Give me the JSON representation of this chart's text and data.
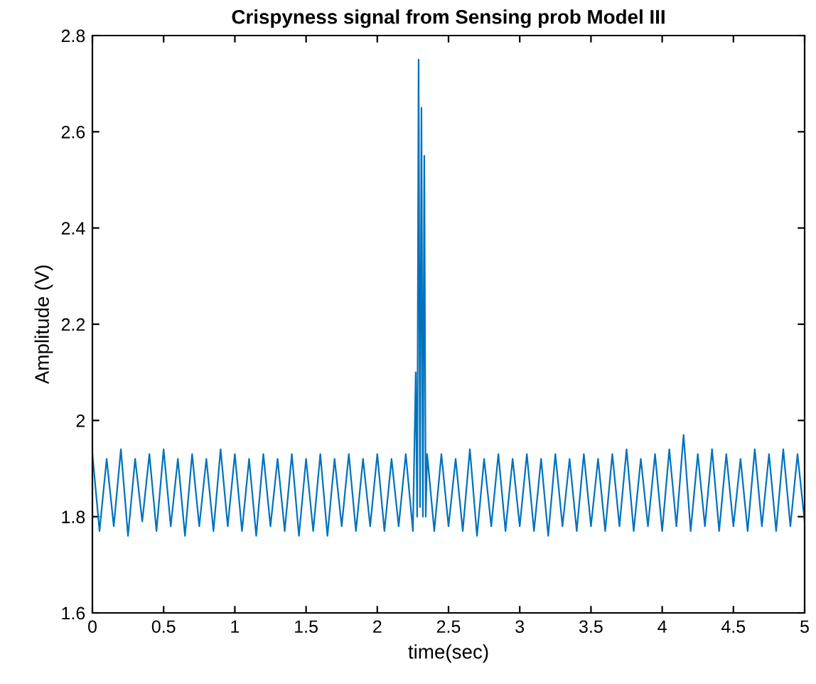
{
  "chart_data": {
    "type": "line",
    "title": "Crispyness signal from Sensing prob Model III",
    "xlabel": "time(sec)",
    "ylabel": "Amplitude (V)",
    "xlim": [
      0,
      5
    ],
    "xticks": [
      0,
      0.5,
      1,
      1.5,
      2,
      2.5,
      3,
      3.5,
      4,
      4.5,
      5
    ],
    "ylim": [
      1.6,
      2.8
    ],
    "yticks": [
      1.6,
      1.8,
      2,
      2.2,
      2.4,
      2.6,
      2.8
    ],
    "grid": false,
    "legend": false,
    "series": [
      {
        "color": "#0072bd",
        "x": [
          0,
          0.05,
          0.1,
          0.15,
          0.2,
          0.25,
          0.3,
          0.35,
          0.4,
          0.45,
          0.5,
          0.55,
          0.6,
          0.65,
          0.7,
          0.75,
          0.8,
          0.85,
          0.9,
          0.95,
          1,
          1.05,
          1.1,
          1.15,
          1.2,
          1.25,
          1.3,
          1.35,
          1.4,
          1.45,
          1.5,
          1.55,
          1.6,
          1.65,
          1.7,
          1.75,
          1.8,
          1.85,
          1.9,
          1.95,
          2,
          2.05,
          2.1,
          2.15,
          2.2,
          2.25,
          2.27,
          2.28,
          2.29,
          2.3,
          2.31,
          2.32,
          2.33,
          2.34,
          2.35,
          2.4,
          2.45,
          2.5,
          2.55,
          2.6,
          2.65,
          2.7,
          2.75,
          2.8,
          2.85,
          2.9,
          2.95,
          3,
          3.05,
          3.1,
          3.15,
          3.2,
          3.25,
          3.3,
          3.35,
          3.4,
          3.45,
          3.5,
          3.55,
          3.6,
          3.65,
          3.7,
          3.75,
          3.8,
          3.85,
          3.9,
          3.95,
          4,
          4.05,
          4.1,
          4.15,
          4.2,
          4.25,
          4.3,
          4.35,
          4.4,
          4.45,
          4.5,
          4.55,
          4.6,
          4.65,
          4.7,
          4.75,
          4.8,
          4.85,
          4.9,
          4.95,
          5
        ],
        "values": [
          1.93,
          1.77,
          1.92,
          1.78,
          1.94,
          1.76,
          1.92,
          1.79,
          1.93,
          1.77,
          1.94,
          1.78,
          1.92,
          1.76,
          1.93,
          1.78,
          1.92,
          1.77,
          1.94,
          1.78,
          1.93,
          1.77,
          1.92,
          1.76,
          1.93,
          1.78,
          1.92,
          1.77,
          1.93,
          1.76,
          1.92,
          1.77,
          1.93,
          1.76,
          1.92,
          1.78,
          1.93,
          1.77,
          1.92,
          1.78,
          1.93,
          1.77,
          1.92,
          1.78,
          1.93,
          1.77,
          2.1,
          1.8,
          2.75,
          1.82,
          2.65,
          1.8,
          2.55,
          1.8,
          1.93,
          1.77,
          1.93,
          1.78,
          1.92,
          1.77,
          1.94,
          1.76,
          1.92,
          1.78,
          1.93,
          1.77,
          1.92,
          1.78,
          1.93,
          1.77,
          1.92,
          1.76,
          1.93,
          1.78,
          1.92,
          1.77,
          1.93,
          1.78,
          1.92,
          1.77,
          1.93,
          1.78,
          1.94,
          1.77,
          1.92,
          1.78,
          1.93,
          1.77,
          1.94,
          1.78,
          1.97,
          1.77,
          1.93,
          1.78,
          1.94,
          1.77,
          1.93,
          1.78,
          1.92,
          1.77,
          1.94,
          1.78,
          1.93,
          1.77,
          1.94,
          1.78,
          1.93,
          1.79
        ]
      }
    ]
  }
}
